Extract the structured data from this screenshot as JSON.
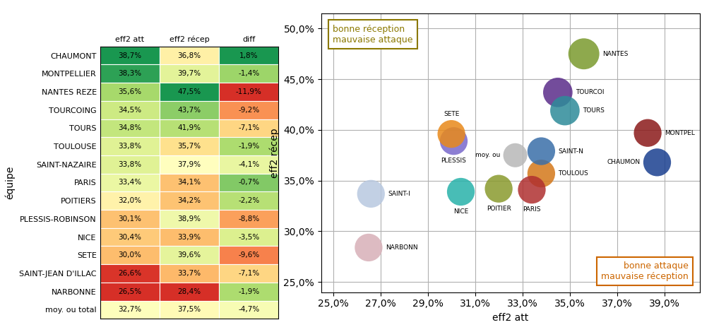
{
  "chart_data": [
    {
      "type": "table",
      "ylabel": "équipe",
      "data_labels": true,
      "categories": [
        "CHAUMONT",
        "MONTPELLIER",
        "NANTES REZE",
        "TOURCOING",
        "TOURS",
        "TOULOUSE",
        "SAINT-NAZAIRE",
        "PARIS",
        "POITIERS",
        "PLESSIS-ROBINSON",
        "NICE",
        "SETE",
        "SAINT-JEAN D'ILLAC",
        "NARBONNE",
        "moy. ou total"
      ],
      "series": [
        {
          "name": "eff2 att",
          "values": [
            38.7,
            38.3,
            35.6,
            34.5,
            34.8,
            33.8,
            33.8,
            33.4,
            32.0,
            30.1,
            30.4,
            30.0,
            26.6,
            26.5,
            32.7
          ],
          "value_labels": [
            "38,7%",
            "38,3%",
            "35,6%",
            "34,5%",
            "34,8%",
            "33,8%",
            "33,8%",
            "33,4%",
            "32,0%",
            "30,1%",
            "30,4%",
            "30,0%",
            "26,6%",
            "26,5%",
            "32,7%"
          ]
        },
        {
          "name": "eff2 récep",
          "values": [
            36.8,
            39.7,
            47.5,
            43.7,
            41.9,
            35.7,
            37.9,
            34.1,
            34.2,
            38.9,
            33.9,
            39.6,
            33.7,
            28.4,
            37.5
          ],
          "value_labels": [
            "36,8%",
            "39,7%",
            "47,5%",
            "43,7%",
            "41,9%",
            "35,7%",
            "37,9%",
            "34,1%",
            "34,2%",
            "38,9%",
            "33,9%",
            "39,6%",
            "33,7%",
            "28,4%",
            "37,5%"
          ]
        },
        {
          "name": "diff",
          "values": [
            1.8,
            -1.4,
            -11.9,
            -9.2,
            -7.1,
            -1.9,
            -4.1,
            -0.7,
            -2.2,
            -8.8,
            -3.5,
            -9.6,
            -7.1,
            -1.9,
            -4.7
          ],
          "value_labels": [
            "1,8%",
            "-1,4%",
            "-11,9%",
            "-9,2%",
            "-7,1%",
            "-1,9%",
            "-4,1%",
            "-0,7%",
            "-2,2%",
            "-8,8%",
            "-3,5%",
            "-9,6%",
            "-7,1%",
            "-1,9%",
            "-4,7%"
          ]
        }
      ]
    },
    {
      "type": "scatter",
      "xlabel": "eff2 att",
      "ylabel": "eff2 récep",
      "labels": [
        "CHAUMON",
        "MONTPEL",
        "NANTES",
        "TOURCOI",
        "TOURS",
        "TOULOUS",
        "SAINT-N",
        "PARIS",
        "POITIER",
        "PLESSIS",
        "NICE",
        "SETE",
        "SAINT-I",
        "NARBONN",
        "moy. ou"
      ],
      "x": [
        38.7,
        38.3,
        35.6,
        34.5,
        34.8,
        33.8,
        33.8,
        33.4,
        32.0,
        30.1,
        30.4,
        30.0,
        26.6,
        26.5,
        32.7
      ],
      "y": [
        36.8,
        39.7,
        47.5,
        43.7,
        41.9,
        35.7,
        37.9,
        34.1,
        34.2,
        38.9,
        33.9,
        39.6,
        33.7,
        28.4,
        37.5
      ],
      "colors": [
        "#1a3f8f",
        "#8b1a1a",
        "#7a9a2e",
        "#5b2d8a",
        "#2e8b99",
        "#d4781a",
        "#3a6ea8",
        "#b03030",
        "#8a9a2e",
        "#7868cc",
        "#28b2aa",
        "#e8891a",
        "#b8c8e0",
        "#d8b0b8",
        "#b8b8b8"
      ],
      "sizes": [
        800,
        800,
        1000,
        900,
        900,
        800,
        800,
        800,
        800,
        800,
        800,
        800,
        800,
        800,
        600
      ],
      "xlim": [
        24.5,
        40.5
      ],
      "ylim": [
        24.0,
        51.5
      ],
      "xticks": [
        {
          "value": 25.0,
          "label": "25,0%"
        },
        {
          "value": 27.0,
          "label": "27,0%"
        },
        {
          "value": 29.0,
          "label": "29,0%"
        },
        {
          "value": 31.0,
          "label": "31,0%"
        },
        {
          "value": 33.0,
          "label": "33,0%"
        },
        {
          "value": 35.0,
          "label": "35,0%"
        },
        {
          "value": 37.0,
          "label": "37,0%"
        },
        {
          "value": 39.0,
          "label": "39,0%"
        }
      ],
      "yticks": [
        {
          "value": 25.0,
          "label": "25,0%"
        },
        {
          "value": 30.0,
          "label": "30,0%"
        },
        {
          "value": 35.0,
          "label": "35,0%"
        },
        {
          "value": 40.0,
          "label": "40,0%"
        },
        {
          "value": 45.0,
          "label": "45,0%"
        },
        {
          "value": 50.0,
          "label": "50,0%"
        }
      ],
      "grid": true,
      "annotations": [
        {
          "text": "bonne réception\nmauvaise attaque",
          "color": "#8b7800"
        },
        {
          "text": "bonne attaque\nmauvaise réception",
          "color": "#cc6600"
        }
      ]
    }
  ]
}
